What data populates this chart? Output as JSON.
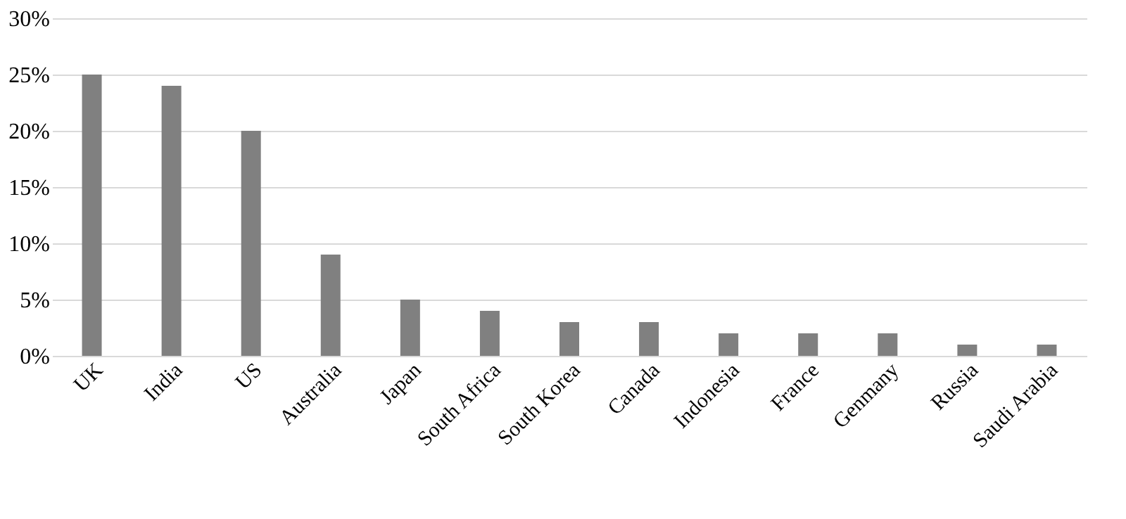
{
  "chart_data": {
    "type": "bar",
    "categories": [
      "UK",
      "India",
      "US",
      "Australia",
      "Japan",
      "South Africa",
      "South Korea",
      "Canada",
      "Indonesia",
      "France",
      "Genmany",
      "Russia",
      "Saudi Arabia"
    ],
    "values": [
      25,
      24,
      20,
      9,
      5,
      4,
      3,
      3,
      2,
      2,
      2,
      1,
      1
    ],
    "color": "#808080",
    "ylim": [
      0,
      30
    ],
    "yticks": [
      {
        "value": 0,
        "label": "0%"
      },
      {
        "value": 5,
        "label": "5%"
      },
      {
        "value": 10,
        "label": "10%"
      },
      {
        "value": 15,
        "label": "15%"
      },
      {
        "value": 20,
        "label": "20%"
      },
      {
        "value": 25,
        "label": "25%"
      },
      {
        "value": 30,
        "label": "30%"
      }
    ],
    "grid": "y"
  }
}
